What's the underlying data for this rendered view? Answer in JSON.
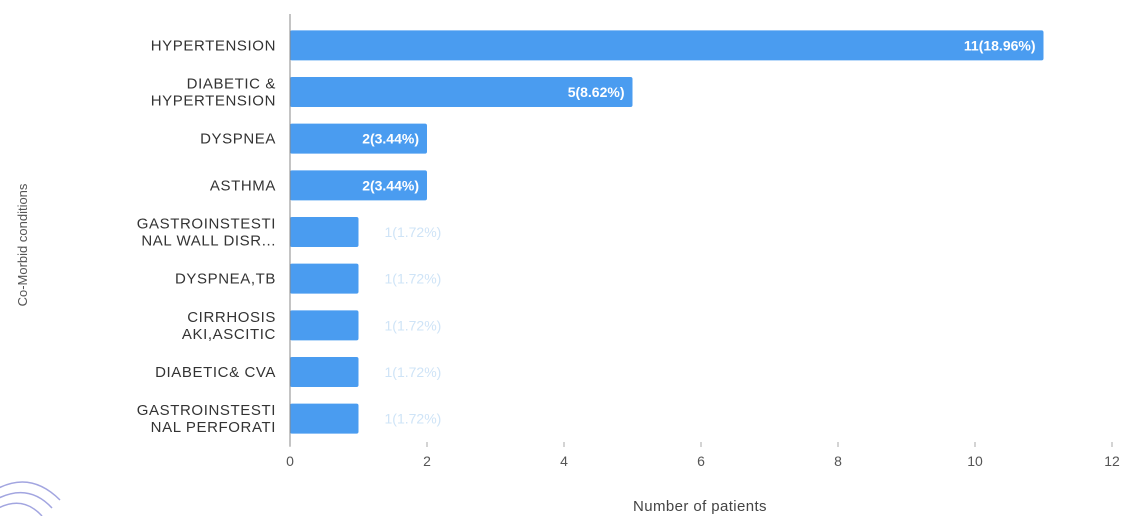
{
  "chart_data": {
    "type": "bar",
    "orientation": "horizontal",
    "title": "",
    "xlabel": "Number  of patients",
    "ylabel": "Co-Morbid conditions",
    "xlim": [
      0,
      12
    ],
    "xticks": [
      0,
      2,
      4,
      6,
      8,
      10,
      12
    ],
    "grid": false,
    "legend": "none",
    "bar_color": "#4a9cf0",
    "categories": [
      [
        "HYPERTENSION"
      ],
      [
        "DIABETIC &",
        "HYPERTENSION"
      ],
      [
        "DYSPNEA"
      ],
      [
        "ASTHMA"
      ],
      [
        "GASTROINSTESTI",
        "NAL WALL DISR..."
      ],
      [
        "DYSPNEA,TB"
      ],
      [
        "CIRRHOSIS",
        "AKI,ASCITIC"
      ],
      [
        "DIABETIC& CVA"
      ],
      [
        "GASTROINSTESTI",
        "NAL PERFORATI"
      ]
    ],
    "values": [
      11,
      5,
      2,
      2,
      1,
      1,
      1,
      1,
      1
    ],
    "data_labels": [
      "11(18.96%)",
      "5(8.62%)",
      "2(3.44%)",
      "2(3.44%)",
      "1(1.72%)",
      "1(1.72%)",
      "1(1.72%)",
      "1(1.72%)",
      "1(1.72%)"
    ]
  }
}
